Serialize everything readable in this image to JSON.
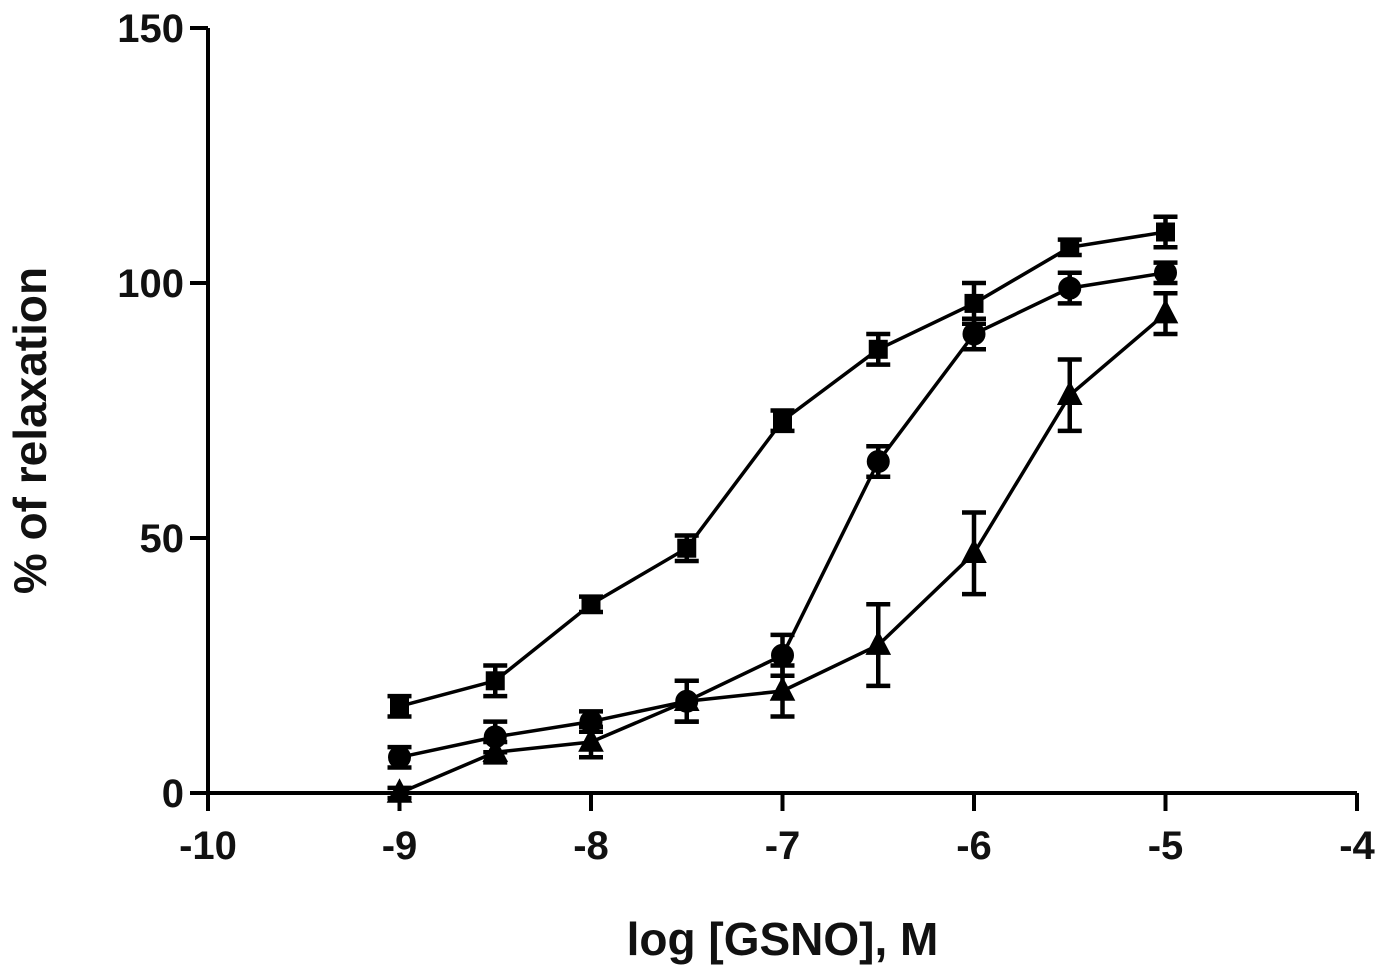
{
  "chart_data": {
    "type": "line",
    "title": "",
    "xlabel": "log [GSNO], M",
    "ylabel": "% of relaxation",
    "xlim": [
      -10,
      -4
    ],
    "ylim": [
      0,
      150
    ],
    "xticks": [
      -10,
      -9,
      -8,
      -7,
      -6,
      -5,
      -4
    ],
    "yticks": [
      0,
      50,
      100,
      150
    ],
    "xtick_labels": [
      "-10",
      "-9",
      "-8",
      "-7",
      "-6",
      "-5",
      "-4"
    ],
    "ytick_labels": [
      "0",
      "50",
      "100",
      "150"
    ],
    "grid": false,
    "x": [
      -9,
      -8.5,
      -8,
      -7.5,
      -7,
      -6.5,
      -6,
      -5.5,
      -5
    ],
    "series": [
      {
        "marker": "square",
        "values": [
          17,
          22,
          37,
          48,
          73,
          87,
          96,
          107,
          110
        ],
        "errors": [
          2,
          3,
          1.5,
          2.5,
          2,
          3,
          4,
          1.5,
          3
        ]
      },
      {
        "marker": "circle",
        "values": [
          7,
          11,
          14,
          18,
          27,
          65,
          90,
          99,
          102
        ],
        "errors": [
          2,
          3,
          2,
          4,
          4,
          3,
          3,
          3,
          2
        ]
      },
      {
        "marker": "triangle",
        "values": [
          0,
          8,
          10,
          18,
          20,
          29,
          47,
          78,
          94
        ],
        "errors": [
          1,
          2,
          3,
          4,
          5,
          8,
          8,
          7,
          4
        ]
      }
    ]
  }
}
